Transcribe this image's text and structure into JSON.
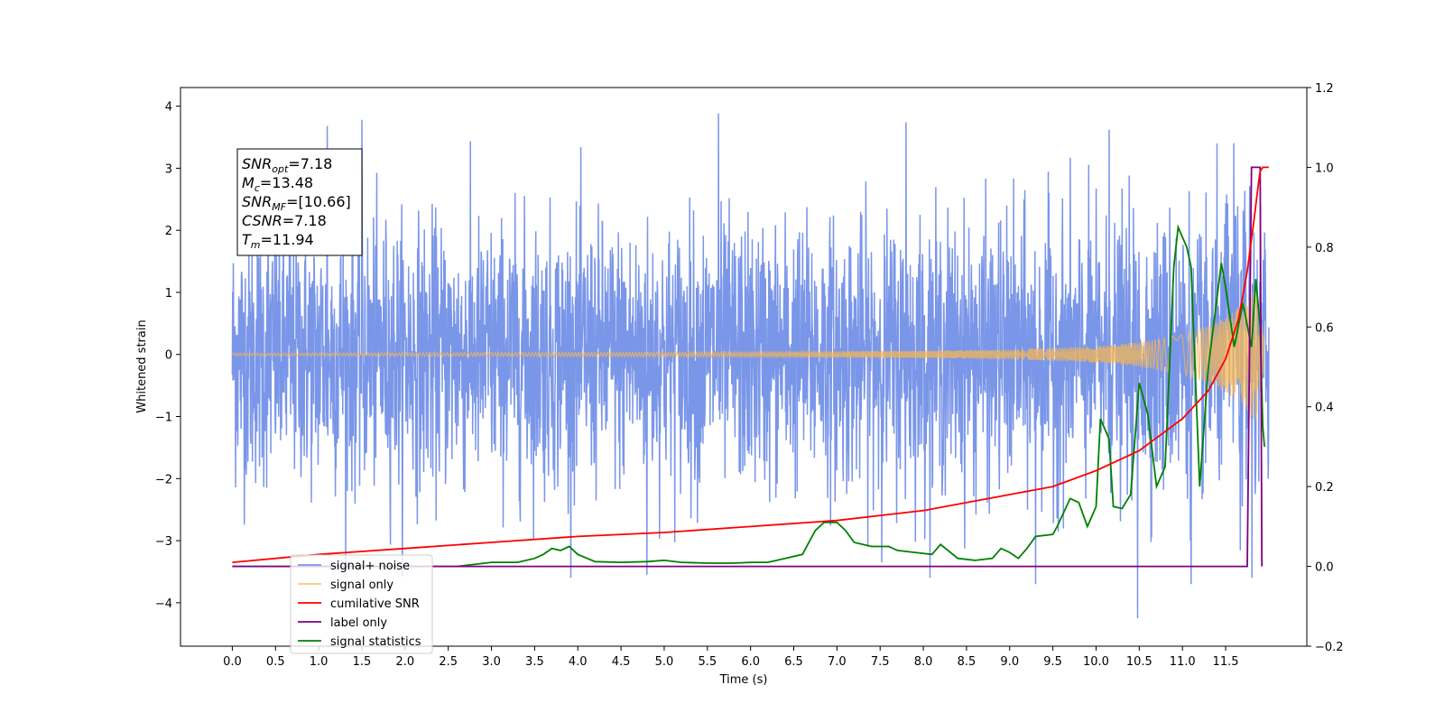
{
  "chart_data": {
    "type": "line",
    "xlabel": "Time (s)",
    "ylabel": "Whitened strain",
    "xlim": [
      -0.6,
      12.44
    ],
    "ylim": [
      -4.7,
      4.3
    ],
    "y2lim": [
      -0.2,
      1.2
    ],
    "x_ticks": [
      0.0,
      0.5,
      1.0,
      1.5,
      2.0,
      2.5,
      3.0,
      3.5,
      4.0,
      4.5,
      5.0,
      5.5,
      6.0,
      6.5,
      7.0,
      7.5,
      8.0,
      8.5,
      9.0,
      9.5,
      10.0,
      10.5,
      11.0,
      11.5
    ],
    "x_tick_labels": [
      "0.0",
      "0.5",
      "1.0",
      "1.5",
      "2.0",
      "2.5",
      "3.0",
      "3.5",
      "4.0",
      "4.5",
      "5.0",
      "5.5",
      "6.0",
      "6.5",
      "7.0",
      "7.5",
      "8.0",
      "8.5",
      "9.0",
      "9.5",
      "10.0",
      "10.5",
      "11.0",
      "11.5"
    ],
    "y_ticks": [
      -4,
      -3,
      -2,
      -1,
      0,
      1,
      2,
      3,
      4
    ],
    "y_tick_labels": [
      "−4",
      "−3",
      "−2",
      "−1",
      "0",
      "1",
      "2",
      "3",
      "4"
    ],
    "y2_ticks": [
      -0.2,
      0.0,
      0.2,
      0.4,
      0.6,
      0.8,
      1.0,
      1.2
    ],
    "y2_tick_labels": [
      "−0.2",
      "0.0",
      "0.2",
      "0.4",
      "0.6",
      "0.8",
      "1.0",
      "1.2"
    ],
    "legend_location": "lower-left",
    "annotation": {
      "lines": [
        {
          "sym": "SNR",
          "sub": "opt",
          "value": "=7.18"
        },
        {
          "sym": "M",
          "sub": "c",
          "value": "=13.48"
        },
        {
          "sym": "SNR",
          "sub": "MF",
          "value": "=[10.66]"
        },
        {
          "sym": "CSNR",
          "sub": "",
          "value": "=7.18"
        },
        {
          "sym": "T",
          "sub": "m",
          "value": "=11.94"
        }
      ]
    },
    "series": [
      {
        "name": "signal+ noise",
        "color": "#7a96e8",
        "axis": "left",
        "style": "noise",
        "x_range": [
          0.0,
          12.0
        ],
        "amplitude_sd": 1.0,
        "peak_range": [
          -4.25,
          3.88
        ],
        "notable_spikes": [
          {
            "x": 1.1,
            "y": 3.68
          },
          {
            "x": 1.5,
            "y": 3.78
          },
          {
            "x": 5.63,
            "y": 3.88
          },
          {
            "x": 7.8,
            "y": 3.74
          },
          {
            "x": 10.48,
            "y": -4.25
          },
          {
            "x": 11.1,
            "y": -3.7
          },
          {
            "x": 9.3,
            "y": -3.7
          },
          {
            "x": 4.8,
            "y": -3.55
          },
          {
            "x": 10.15,
            "y": 3.62
          }
        ]
      },
      {
        "name": "signal only",
        "color": "#f5b555",
        "axis": "left",
        "style": "chirp",
        "x_range": [
          0.0,
          11.94
        ],
        "envelope": [
          [
            0.0,
            0.02
          ],
          [
            6.0,
            0.04
          ],
          [
            8.0,
            0.06
          ],
          [
            9.0,
            0.08
          ],
          [
            10.0,
            0.13
          ],
          [
            10.5,
            0.2
          ],
          [
            11.0,
            0.32
          ],
          [
            11.4,
            0.52
          ],
          [
            11.7,
            0.8
          ],
          [
            11.85,
            1.1
          ],
          [
            11.94,
            0.3
          ]
        ]
      },
      {
        "name": "cumilative SNR",
        "color": "#ff0000",
        "axis": "right",
        "points": [
          [
            0.0,
            0.01
          ],
          [
            1.0,
            0.03
          ],
          [
            2.0,
            0.045
          ],
          [
            3.0,
            0.06
          ],
          [
            4.0,
            0.075
          ],
          [
            5.0,
            0.085
          ],
          [
            6.0,
            0.1
          ],
          [
            7.0,
            0.115
          ],
          [
            8.0,
            0.14
          ],
          [
            9.0,
            0.18
          ],
          [
            9.5,
            0.2
          ],
          [
            10.0,
            0.24
          ],
          [
            10.5,
            0.29
          ],
          [
            11.0,
            0.37
          ],
          [
            11.3,
            0.44
          ],
          [
            11.5,
            0.52
          ],
          [
            11.65,
            0.62
          ],
          [
            11.75,
            0.74
          ],
          [
            11.83,
            0.87
          ],
          [
            11.88,
            0.96
          ],
          [
            11.9,
            0.99
          ],
          [
            11.93,
            1.0
          ],
          [
            12.0,
            1.0
          ]
        ]
      },
      {
        "name": "label only",
        "color": "#800080",
        "axis": "right",
        "points": [
          [
            0.0,
            0.0
          ],
          [
            11.75,
            0.0
          ],
          [
            11.8,
            1.0
          ],
          [
            11.85,
            1.0
          ],
          [
            11.9,
            1.0
          ],
          [
            11.92,
            0.0
          ]
        ]
      },
      {
        "name": "signal statistics",
        "color": "#008000",
        "axis": "right",
        "points": [
          [
            0.0,
            0.0
          ],
          [
            1.0,
            0.0
          ],
          [
            2.0,
            0.0
          ],
          [
            2.6,
            0.0
          ],
          [
            2.8,
            0.005
          ],
          [
            3.0,
            0.01
          ],
          [
            3.3,
            0.01
          ],
          [
            3.5,
            0.02
          ],
          [
            3.6,
            0.03
          ],
          [
            3.7,
            0.045
          ],
          [
            3.8,
            0.04
          ],
          [
            3.9,
            0.05
          ],
          [
            4.0,
            0.03
          ],
          [
            4.2,
            0.012
          ],
          [
            4.5,
            0.01
          ],
          [
            4.8,
            0.012
          ],
          [
            5.0,
            0.015
          ],
          [
            5.2,
            0.01
          ],
          [
            5.5,
            0.008
          ],
          [
            5.8,
            0.008
          ],
          [
            6.0,
            0.01
          ],
          [
            6.2,
            0.01
          ],
          [
            6.4,
            0.02
          ],
          [
            6.6,
            0.03
          ],
          [
            6.75,
            0.09
          ],
          [
            6.85,
            0.11
          ],
          [
            7.0,
            0.11
          ],
          [
            7.1,
            0.09
          ],
          [
            7.2,
            0.06
          ],
          [
            7.4,
            0.05
          ],
          [
            7.6,
            0.05
          ],
          [
            7.7,
            0.04
          ],
          [
            7.9,
            0.035
          ],
          [
            8.1,
            0.03
          ],
          [
            8.2,
            0.055
          ],
          [
            8.4,
            0.02
          ],
          [
            8.6,
            0.015
          ],
          [
            8.8,
            0.02
          ],
          [
            8.9,
            0.045
          ],
          [
            9.0,
            0.035
          ],
          [
            9.1,
            0.02
          ],
          [
            9.2,
            0.045
          ],
          [
            9.3,
            0.075
          ],
          [
            9.5,
            0.08
          ],
          [
            9.55,
            0.1
          ],
          [
            9.7,
            0.17
          ],
          [
            9.8,
            0.16
          ],
          [
            9.9,
            0.1
          ],
          [
            10.0,
            0.15
          ],
          [
            10.05,
            0.37
          ],
          [
            10.15,
            0.32
          ],
          [
            10.2,
            0.15
          ],
          [
            10.3,
            0.145
          ],
          [
            10.4,
            0.18
          ],
          [
            10.5,
            0.46
          ],
          [
            10.6,
            0.38
          ],
          [
            10.7,
            0.2
          ],
          [
            10.8,
            0.25
          ],
          [
            10.9,
            0.75
          ],
          [
            10.95,
            0.85
          ],
          [
            11.05,
            0.8
          ],
          [
            11.1,
            0.75
          ],
          [
            11.2,
            0.2
          ],
          [
            11.3,
            0.5
          ],
          [
            11.45,
            0.76
          ],
          [
            11.5,
            0.7
          ],
          [
            11.6,
            0.55
          ],
          [
            11.7,
            0.66
          ],
          [
            11.8,
            0.55
          ],
          [
            11.85,
            0.72
          ],
          [
            11.9,
            0.6
          ],
          [
            11.93,
            0.35
          ],
          [
            11.95,
            0.3
          ]
        ]
      }
    ]
  }
}
